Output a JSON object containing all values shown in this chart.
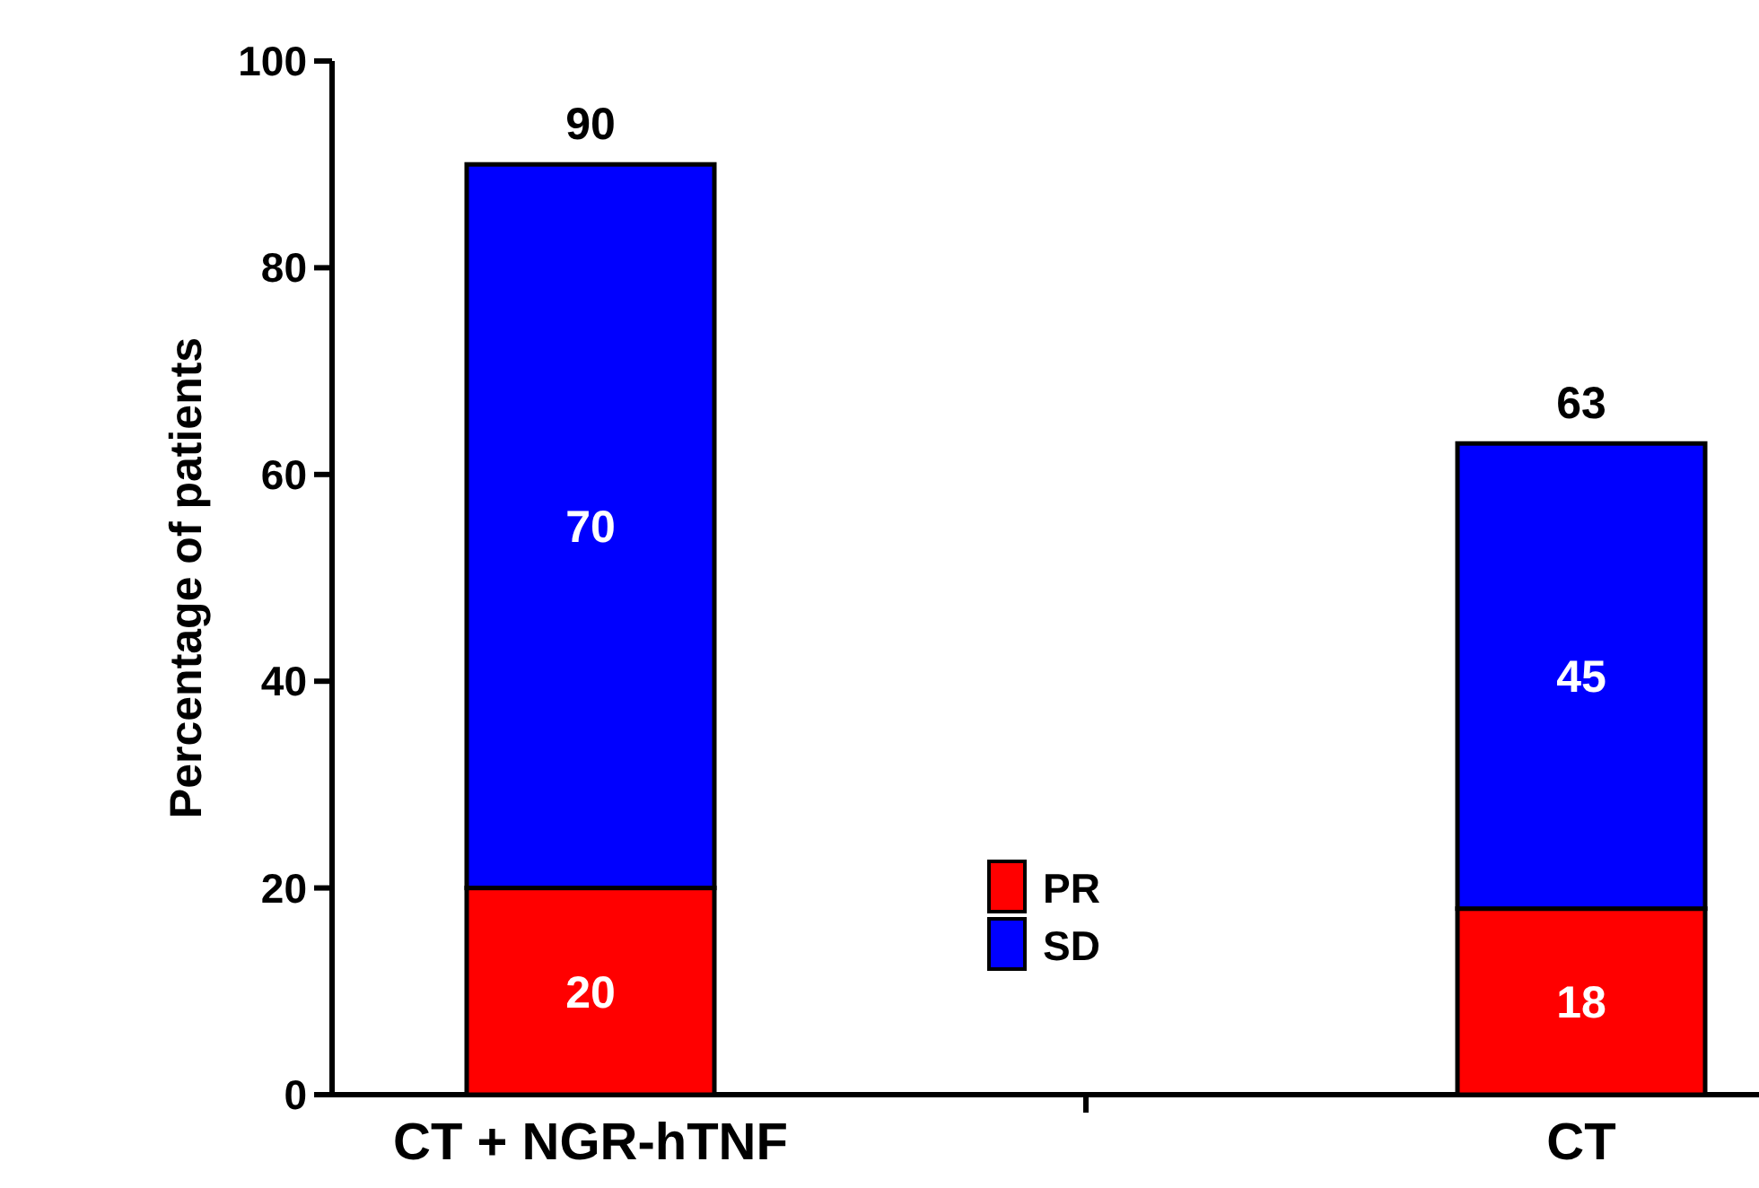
{
  "chart_data": {
    "type": "bar",
    "ylabel": "Percentage of patients",
    "categories": [
      "CT + NGR-hTNF",
      "CT"
    ],
    "stacked": true,
    "series": [
      {
        "name": "PR",
        "color": "#ff0000",
        "values": [
          20,
          18
        ]
      },
      {
        "name": "SD",
        "color": "#0000ff",
        "values": [
          70,
          45
        ]
      }
    ],
    "ylim": [
      0,
      100
    ],
    "yticks": [
      0,
      20,
      40,
      60,
      80,
      100
    ],
    "data_labels": true,
    "totals": [
      "90",
      "63"
    ],
    "legend": "bottom",
    "grid": false
  }
}
